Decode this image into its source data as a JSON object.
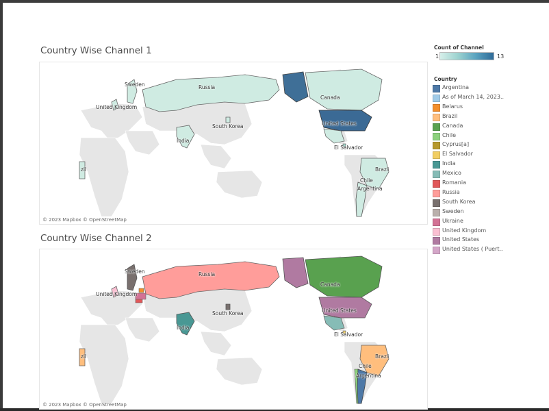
{
  "maps": [
    {
      "title": "Country Wise Channel 1",
      "attribution": "© 2023 Mapbox © OpenStreetMap",
      "labels": {
        "sweden": "Sweden",
        "russia": "Russia",
        "uk": "United Kingdom",
        "canada": "Canada",
        "us": "United States",
        "skorea": "South Korea",
        "india": "India",
        "elsalvador": "El Salvador",
        "brazil": "Brazil",
        "brazil_left": "Brazil",
        "chile": "Chile",
        "argentina": "Argentina"
      }
    },
    {
      "title": "Country Wise Channel 2",
      "attribution": "© 2023 Mapbox © OpenStreetMap",
      "labels": {
        "sweden": "Sweden",
        "russia": "Russia",
        "uk": "United Kingdom",
        "canada": "Canada",
        "us": "United States",
        "skorea": "South Korea",
        "india": "India",
        "elsalvador": "El Salvador",
        "brazil": "Brazil",
        "brazil_left": "Brazil",
        "chile": "Chile",
        "argentina": "Argentina"
      }
    }
  ],
  "count_legend": {
    "title": "Count of Channel",
    "min": "1",
    "max": "13"
  },
  "country_legend": {
    "title": "Country",
    "items": [
      {
        "label": "Argentina",
        "color": "#4e79a7"
      },
      {
        "label": "As of March 14, 2023..",
        "color": "#a0cbe8"
      },
      {
        "label": "Belarus",
        "color": "#f28e2b"
      },
      {
        "label": "Brazil",
        "color": "#ffbe7d"
      },
      {
        "label": "Canada",
        "color": "#59a14f"
      },
      {
        "label": "Chile",
        "color": "#8cd17d"
      },
      {
        "label": "Cyprus[a]",
        "color": "#b6992d"
      },
      {
        "label": "El Salvador",
        "color": "#f1ce63"
      },
      {
        "label": "India",
        "color": "#499894"
      },
      {
        "label": "Mexico",
        "color": "#86bcb6"
      },
      {
        "label": "Romania",
        "color": "#e15759"
      },
      {
        "label": "Russia",
        "color": "#ff9d9a"
      },
      {
        "label": "South Korea",
        "color": "#79706e"
      },
      {
        "label": "Sweden",
        "color": "#bab0ac"
      },
      {
        "label": "Ukraine",
        "color": "#d37295"
      },
      {
        "label": "United Kingdom",
        "color": "#fabfd2"
      },
      {
        "label": "United States",
        "color": "#b07aa1"
      },
      {
        "label": "United States ( Puert..",
        "color": "#d4a6c8"
      }
    ]
  }
}
